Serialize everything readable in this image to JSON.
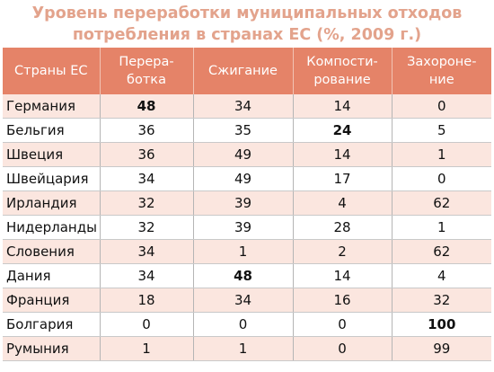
{
  "chart_data": {
    "type": "table",
    "title_line1": "Уровень переработки муниципальных отходов",
    "title_line2": "потребления в странах ЕС (%, 2009 г.)",
    "columns": [
      {
        "line1": "Страны ЕС",
        "line2": ""
      },
      {
        "line1": "Перера-",
        "line2": "ботка"
      },
      {
        "line1": "Сжигание",
        "line2": ""
      },
      {
        "line1": "Компости-",
        "line2": "рование"
      },
      {
        "line1": "Захороне-",
        "line2": "ние"
      }
    ],
    "rows": [
      {
        "country": "Германия",
        "values": [
          48,
          34,
          14,
          0
        ],
        "bold": [
          true,
          false,
          false,
          false
        ]
      },
      {
        "country": "Бельгия",
        "values": [
          36,
          35,
          24,
          5
        ],
        "bold": [
          false,
          false,
          true,
          false
        ]
      },
      {
        "country": "Швеция",
        "values": [
          36,
          49,
          14,
          1
        ],
        "bold": [
          false,
          false,
          false,
          false
        ]
      },
      {
        "country": "Швейцария",
        "values": [
          34,
          49,
          17,
          0
        ],
        "bold": [
          false,
          false,
          false,
          false
        ]
      },
      {
        "country": "Ирландия",
        "values": [
          32,
          39,
          4,
          62
        ],
        "bold": [
          false,
          false,
          false,
          false
        ]
      },
      {
        "country": "Нидерланды",
        "values": [
          32,
          39,
          28,
          1
        ],
        "bold": [
          false,
          false,
          false,
          false
        ]
      },
      {
        "country": "Словения",
        "values": [
          34,
          1,
          2,
          62
        ],
        "bold": [
          false,
          false,
          false,
          false
        ]
      },
      {
        "country": "Дания",
        "values": [
          34,
          48,
          14,
          4
        ],
        "bold": [
          false,
          true,
          false,
          false
        ]
      },
      {
        "country": "Франция",
        "values": [
          18,
          34,
          16,
          32
        ],
        "bold": [
          false,
          false,
          false,
          false
        ]
      },
      {
        "country": "Болгария",
        "values": [
          0,
          0,
          0,
          100
        ],
        "bold": [
          false,
          false,
          false,
          true
        ]
      },
      {
        "country": "Румыния",
        "values": [
          1,
          1,
          0,
          99
        ],
        "bold": [
          false,
          false,
          false,
          false
        ]
      }
    ],
    "colors": {
      "title": "#e3a38c",
      "header_bg": "#e58368",
      "header_text": "#ffffff",
      "row_stripe": "#fbe6df",
      "row_plain": "#ffffff"
    }
  }
}
